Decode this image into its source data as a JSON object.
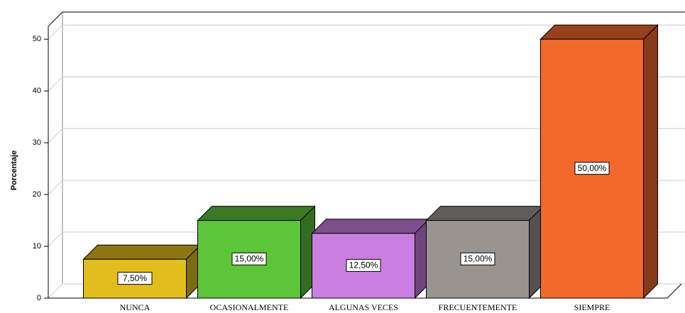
{
  "chart_data": {
    "type": "bar3d",
    "y_label": "Porcentaje",
    "categories": [
      "NUNCA",
      "OCASIONALMENTE",
      "ALGUNAS VECES",
      "FRECUENTEMENTE",
      "SIEMPRE"
    ],
    "values": [
      7.5,
      15,
      12.5,
      15,
      50
    ],
    "value_labels": [
      "7,50%",
      "15,00%",
      "12,50%",
      "15,00%",
      "50,00%"
    ],
    "colors": [
      "#e1be1e",
      "#5ec43a",
      "#c97fe1",
      "#9a9491",
      "#f2692d"
    ],
    "ylim": [
      0,
      52.5
    ],
    "yticks": [
      0,
      10,
      20,
      30,
      40,
      50
    ],
    "grid": true
  }
}
